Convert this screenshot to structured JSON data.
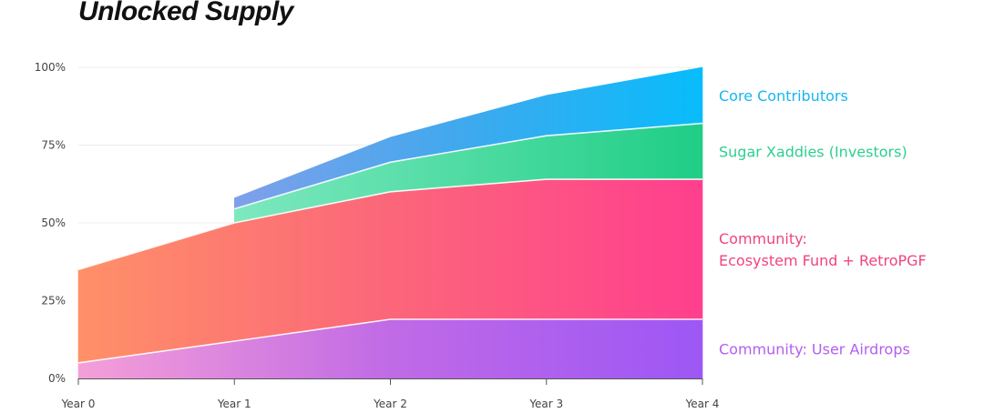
{
  "chart_data": {
    "type": "area",
    "title": "Unlocked Supply",
    "x": [
      "Year 0",
      "Year 1",
      "Year 2",
      "Year 3",
      "Year 4"
    ],
    "y_ticks": [
      "0%",
      "25%",
      "50%",
      "75%",
      "100%"
    ],
    "ylim": [
      0,
      100
    ],
    "stacked": true,
    "grid": true,
    "legend": "right",
    "series": [
      {
        "name": "Community: User Airdrops",
        "color": "#b35ef0",
        "x": [
          "Year 0",
          "Year 1",
          "Year 2",
          "Year 3",
          "Year 4"
        ],
        "values": [
          5,
          12,
          19,
          19,
          19
        ]
      },
      {
        "name": "Community: Ecosystem Fund + RetroPGF",
        "color": "#f0447e",
        "x": [
          "Year 0",
          "Year 1",
          "Year 2",
          "Year 3",
          "Year 4"
        ],
        "values": [
          30,
          38,
          41,
          45,
          45
        ]
      },
      {
        "name": "Sugar Xaddies (Investors)",
        "color": "#2dcf8f",
        "x": [
          "Year 1",
          "Year 2",
          "Year 3",
          "Year 4"
        ],
        "values": [
          4.5,
          9.5,
          14,
          18
        ]
      },
      {
        "name": "Core Contributors",
        "color": "#16b6f2",
        "x": [
          "Year 1",
          "Year 2",
          "Year 3",
          "Year 4"
        ],
        "values": [
          3.5,
          8,
          13,
          18
        ]
      }
    ]
  }
}
